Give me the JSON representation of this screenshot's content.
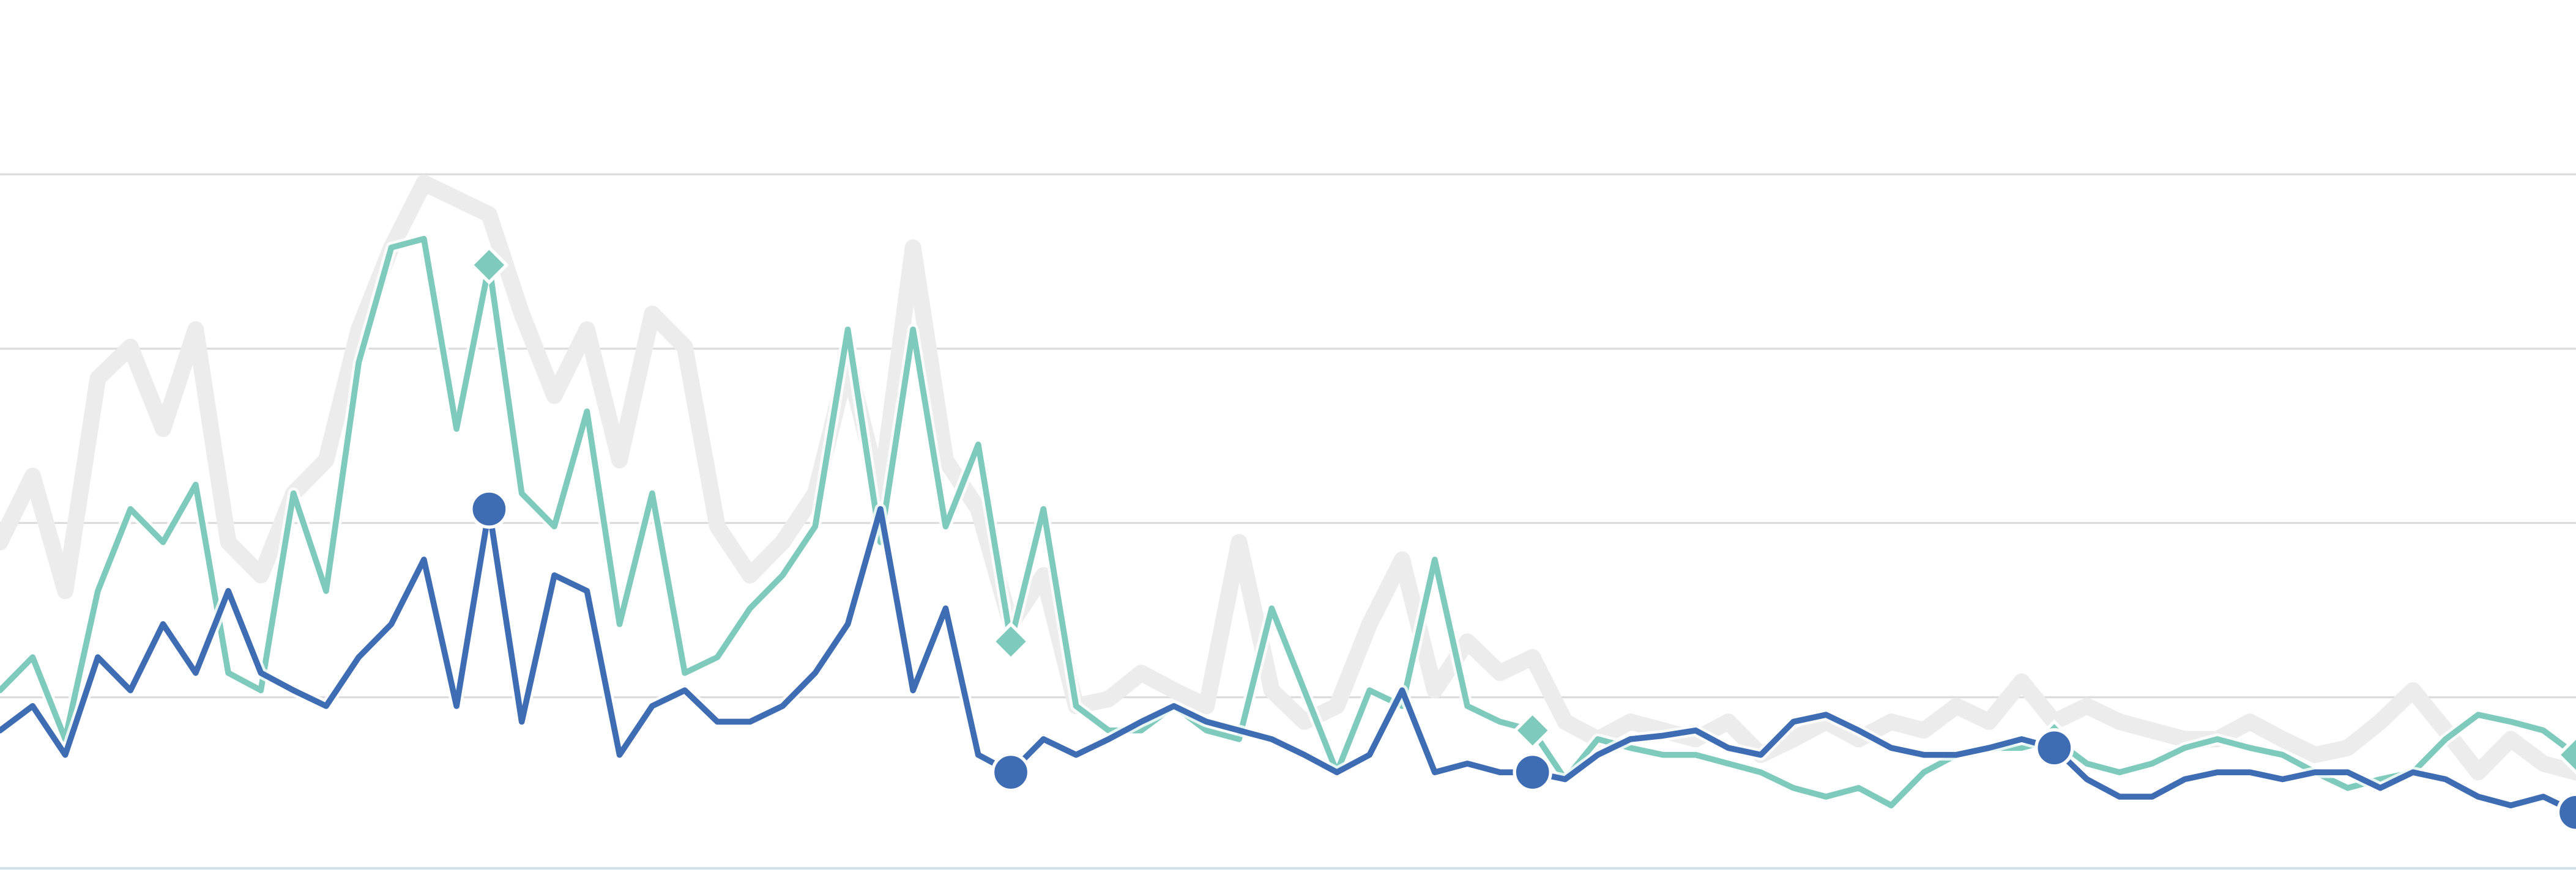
{
  "chart_data": {
    "type": "line",
    "ylim": [
      0,
      5
    ],
    "yticks": [
      1,
      2,
      3,
      4
    ],
    "grid": true,
    "marker_every": 16,
    "series": [
      {
        "color": "#ececec",
        "values": [
          1.89,
          2.27,
          1.61,
          2.83,
          3.01,
          2.54,
          3.11,
          1.89,
          1.7,
          2.17,
          2.36,
          3.11,
          3.58,
          3.95,
          3.86,
          3.77,
          3.2,
          2.73,
          3.11,
          2.36,
          3.2,
          3.01,
          1.98,
          1.7,
          1.89,
          2.17,
          2.92,
          2.17,
          3.58,
          2.36,
          2.08,
          1.42,
          1.7,
          0.95,
          0.99,
          1.14,
          1.04,
          0.95,
          1.89,
          1.04,
          0.86,
          0.95,
          1.42,
          1.79,
          1.04,
          1.32,
          1.14,
          1.23,
          0.86,
          0.76,
          0.86,
          0.81,
          0.76,
          0.86,
          0.67,
          0.76,
          0.86,
          0.76,
          0.86,
          0.81,
          0.95,
          0.86,
          1.09,
          0.86,
          0.95,
          0.86,
          0.81,
          0.76,
          0.76,
          0.86,
          0.76,
          0.67,
          0.71,
          0.86,
          1.04,
          0.81,
          0.57,
          0.76,
          0.62,
          0.57
        ]
      },
      {
        "color": "#7ecabc",
        "marker": "diamond",
        "values": [
          1.04,
          1.23,
          0.76,
          1.61,
          2.08,
          1.89,
          2.22,
          1.14,
          1.04,
          2.17,
          1.61,
          2.92,
          3.58,
          3.63,
          2.54,
          3.48,
          2.17,
          1.98,
          2.64,
          1.42,
          2.17,
          1.14,
          1.23,
          1.51,
          1.7,
          1.98,
          3.11,
          1.89,
          3.11,
          1.98,
          2.45,
          1.32,
          2.08,
          0.95,
          0.81,
          0.81,
          0.95,
          0.81,
          0.76,
          1.51,
          1.04,
          0.57,
          1.04,
          0.95,
          1.79,
          0.95,
          0.86,
          0.81,
          0.53,
          0.76,
          0.71,
          0.67,
          0.67,
          0.62,
          0.57,
          0.48,
          0.43,
          0.48,
          0.38,
          0.57,
          0.67,
          0.71,
          0.71,
          0.76,
          0.62,
          0.57,
          0.62,
          0.71,
          0.76,
          0.71,
          0.67,
          0.57,
          0.48,
          0.53,
          0.57,
          0.76,
          0.9,
          0.86,
          0.81,
          0.67
        ]
      },
      {
        "color": "#3f6db3",
        "marker": "circle",
        "values": [
          0.81,
          0.95,
          0.67,
          1.23,
          1.04,
          1.42,
          1.14,
          1.61,
          1.14,
          1.04,
          0.95,
          1.23,
          1.42,
          1.79,
          0.95,
          2.08,
          0.86,
          1.7,
          1.61,
          0.67,
          0.95,
          1.04,
          0.86,
          0.86,
          0.95,
          1.14,
          1.42,
          2.08,
          1.04,
          1.51,
          0.67,
          0.57,
          0.76,
          0.67,
          0.76,
          0.86,
          0.95,
          0.86,
          0.81,
          0.76,
          0.67,
          0.57,
          0.67,
          1.04,
          0.57,
          0.62,
          0.57,
          0.57,
          0.53,
          0.67,
          0.76,
          0.78,
          0.81,
          0.71,
          0.67,
          0.86,
          0.9,
          0.81,
          0.71,
          0.67,
          0.67,
          0.71,
          0.76,
          0.71,
          0.53,
          0.43,
          0.43,
          0.53,
          0.57,
          0.57,
          0.53,
          0.57,
          0.57,
          0.48,
          0.57,
          0.53,
          0.43,
          0.38,
          0.43,
          0.34
        ]
      }
    ]
  }
}
